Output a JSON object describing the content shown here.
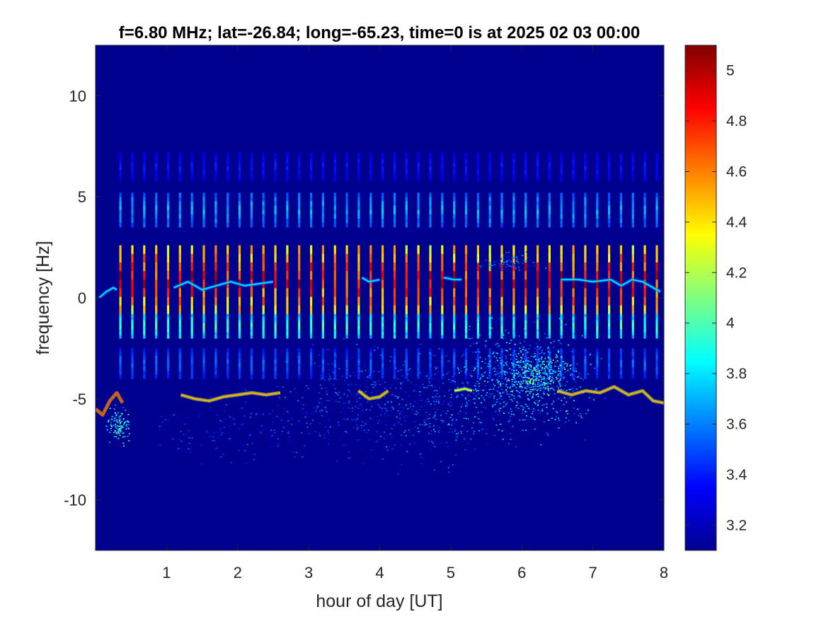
{
  "chart_data": {
    "type": "heatmap",
    "title": "f=6.80 MHz;  lat=-26.84; long=-65.23, time=0 is at 2025 02 03 00:00",
    "xlabel": "hour of day [UT]",
    "ylabel": "frequency [Hz]",
    "xlim": [
      0,
      8
    ],
    "ylim": [
      -12.5,
      12.5
    ],
    "xticks": [
      1,
      2,
      3,
      4,
      5,
      6,
      7,
      8
    ],
    "xtick_labels": [
      "1",
      "2",
      "3",
      "4",
      "5",
      "6",
      "7",
      "8"
    ],
    "yticks": [
      10,
      5,
      0,
      -5,
      -10
    ],
    "ytick_labels": [
      "10",
      "5",
      "0",
      "-5",
      "-10"
    ],
    "colormap": "jet",
    "clim": [
      3.1,
      5.1
    ],
    "colorbar_ticks": [
      3.2,
      3.4,
      3.6,
      3.8,
      4,
      4.2,
      4.4,
      4.6,
      4.8,
      5
    ],
    "colorbar_tick_labels": [
      "3.2",
      "3.4",
      "3.6",
      "3.8",
      "4",
      "4.2",
      "4.4",
      "4.6",
      "4.8",
      "5"
    ],
    "background_color": "#00008f",
    "vertical_streaks": {
      "x_start": 0.35,
      "x_end": 7.9,
      "count": 46,
      "bands": [
        {
          "y_from": -0.8,
          "y_to": 2.6,
          "level": 4.9
        },
        {
          "y_from": -2.0,
          "y_to": -0.8,
          "level": 4.0
        },
        {
          "y_from": 3.5,
          "y_to": 5.2,
          "level": 3.7
        },
        {
          "y_from": -4.0,
          "y_to": -2.5,
          "level": 3.55
        },
        {
          "y_from": 5.8,
          "y_to": 7.2,
          "level": 3.4
        }
      ]
    },
    "traces": [
      {
        "points": [
          [
            0.05,
            0.0
          ],
          [
            0.15,
            0.3
          ],
          [
            0.25,
            0.5
          ],
          [
            0.3,
            0.4
          ]
        ],
        "level": 3.8
      },
      {
        "points": [
          [
            1.1,
            0.5
          ],
          [
            1.3,
            0.8
          ],
          [
            1.5,
            0.4
          ],
          [
            1.7,
            0.6
          ],
          [
            1.9,
            0.8
          ],
          [
            2.1,
            0.6
          ],
          [
            2.3,
            0.7
          ],
          [
            2.5,
            0.8
          ]
        ],
        "level": 3.8
      },
      {
        "points": [
          [
            3.75,
            1.0
          ],
          [
            3.85,
            0.8
          ],
          [
            4.0,
            0.9
          ]
        ],
        "level": 3.8
      },
      {
        "points": [
          [
            4.9,
            1.0
          ],
          [
            5.05,
            0.9
          ],
          [
            5.15,
            0.9
          ]
        ],
        "level": 3.8
      },
      {
        "points": [
          [
            6.55,
            0.9
          ],
          [
            6.8,
            0.9
          ],
          [
            7.0,
            0.8
          ],
          [
            7.25,
            0.9
          ],
          [
            7.4,
            0.6
          ],
          [
            7.55,
            0.9
          ],
          [
            7.7,
            0.8
          ],
          [
            7.85,
            0.5
          ],
          [
            7.95,
            0.3
          ]
        ],
        "level": 3.8
      },
      {
        "points": [
          [
            0.0,
            -5.5
          ],
          [
            0.1,
            -5.8
          ],
          [
            0.2,
            -5.1
          ],
          [
            0.3,
            -4.7
          ],
          [
            0.38,
            -5.2
          ]
        ],
        "level": 4.7
      },
      {
        "points": [
          [
            1.2,
            -4.8
          ],
          [
            1.4,
            -5.0
          ],
          [
            1.6,
            -5.1
          ],
          [
            1.8,
            -4.9
          ],
          [
            2.0,
            -4.8
          ],
          [
            2.2,
            -4.7
          ],
          [
            2.4,
            -4.8
          ],
          [
            2.6,
            -4.7
          ]
        ],
        "level": 4.5
      },
      {
        "points": [
          [
            3.7,
            -4.6
          ],
          [
            3.85,
            -5.0
          ],
          [
            4.0,
            -4.9
          ],
          [
            4.12,
            -4.6
          ]
        ],
        "level": 4.5
      },
      {
        "points": [
          [
            5.05,
            -4.6
          ],
          [
            5.2,
            -4.5
          ],
          [
            5.3,
            -4.6
          ]
        ],
        "level": 4.3
      },
      {
        "points": [
          [
            6.5,
            -4.6
          ],
          [
            6.7,
            -4.8
          ],
          [
            6.9,
            -4.6
          ],
          [
            7.1,
            -4.7
          ],
          [
            7.3,
            -4.4
          ],
          [
            7.5,
            -4.8
          ],
          [
            7.7,
            -4.6
          ],
          [
            7.85,
            -5.1
          ],
          [
            8.0,
            -5.2
          ]
        ],
        "level": 4.5
      }
    ],
    "scatter_regions": [
      {
        "x_center": 0.3,
        "y_center": -6.3,
        "x_spread": 0.15,
        "y_spread": 0.8,
        "density": 120,
        "level": 3.85
      },
      {
        "x_center": 2.0,
        "y_center": -6.5,
        "x_spread": 1.2,
        "y_spread": 1.5,
        "density": 150,
        "level": 3.45
      },
      {
        "x_center": 3.6,
        "y_center": -5.0,
        "x_spread": 0.9,
        "y_spread": 2.5,
        "density": 300,
        "level": 3.5
      },
      {
        "x_center": 4.8,
        "y_center": -5.5,
        "x_spread": 0.9,
        "y_spread": 2.5,
        "density": 320,
        "level": 3.55
      },
      {
        "x_center": 6.0,
        "y_center": -4.0,
        "x_spread": 0.9,
        "y_spread": 2.3,
        "density": 700,
        "level": 3.7
      },
      {
        "x_center": 6.2,
        "y_center": -3.8,
        "x_spread": 0.4,
        "y_spread": 1.0,
        "density": 250,
        "level": 3.95
      },
      {
        "x_center": 5.8,
        "y_center": 1.8,
        "x_spread": 0.4,
        "y_spread": 0.5,
        "density": 80,
        "level": 3.55
      }
    ]
  }
}
